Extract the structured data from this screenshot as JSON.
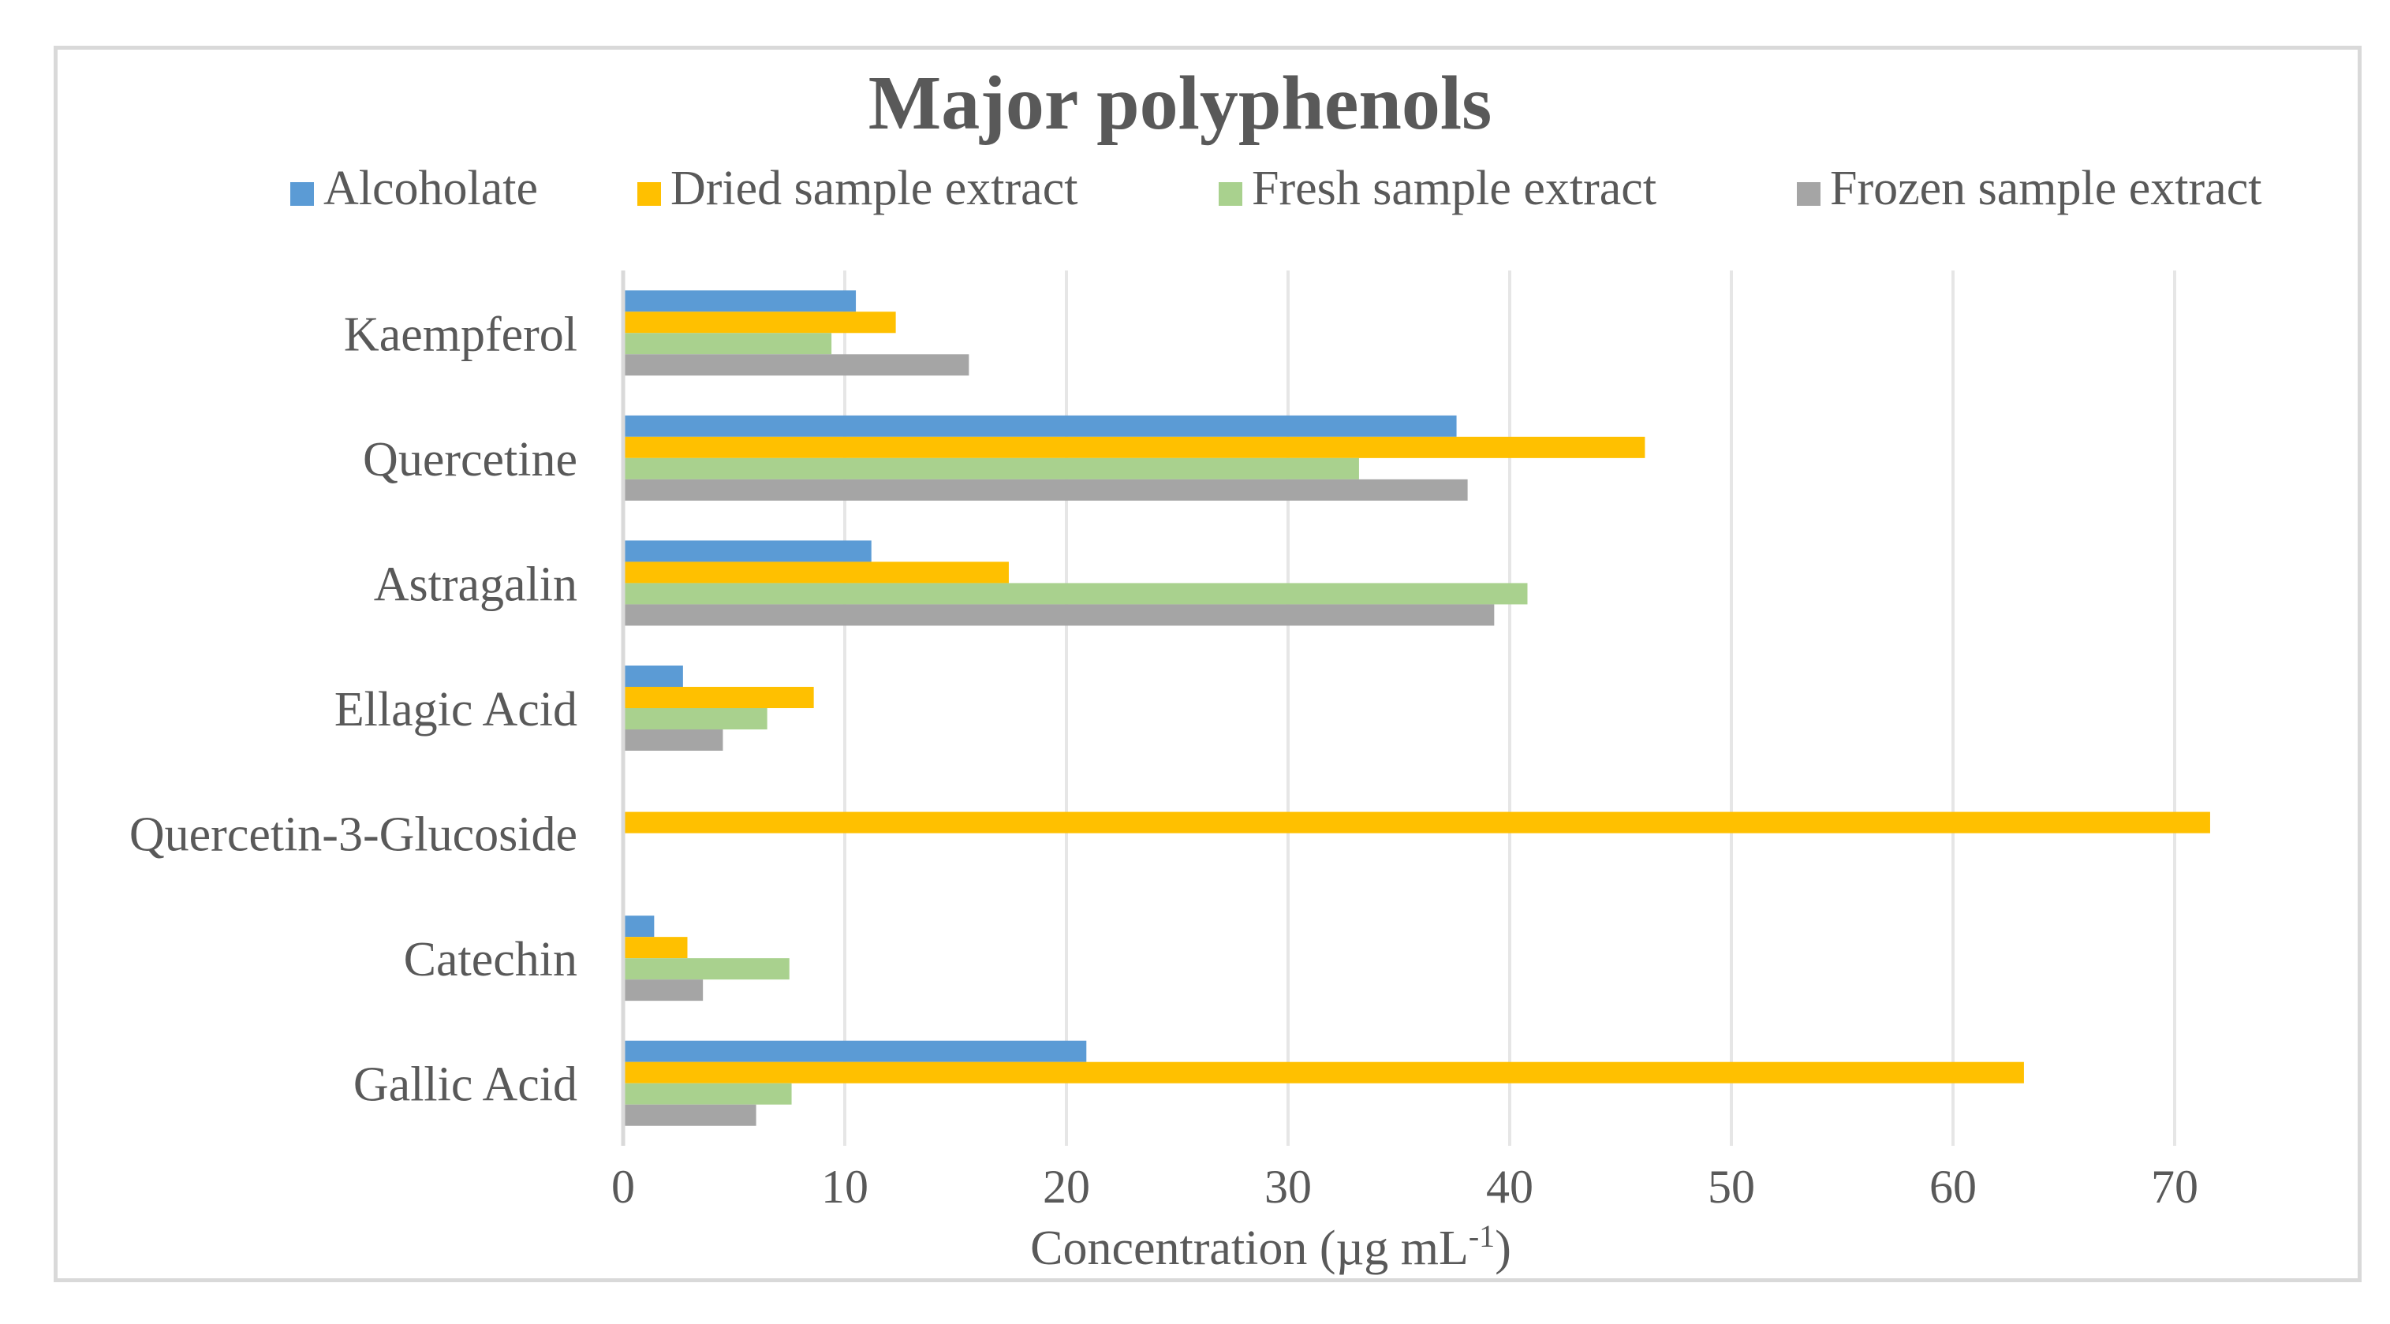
{
  "chart_data": {
    "type": "bar",
    "orientation": "horizontal",
    "title": "Major polyphenols",
    "xlabel": "Concentration (µg mL",
    "xlabel_superscript": "-1",
    "xlabel_suffix": ")",
    "ylabel": "",
    "xlim": [
      0,
      72
    ],
    "xticks": [
      0,
      10,
      20,
      30,
      40,
      50,
      60,
      70
    ],
    "grid": true,
    "legend_position": "top",
    "categories": [
      "Kaempferol",
      "Quercetine",
      "Astragalin",
      "Ellagic Acid",
      "Quercetin-3-Glucoside",
      "Catechin",
      "Gallic Acid"
    ],
    "series": [
      {
        "name": "Alcoholate",
        "color": "#5b9bd5",
        "values": [
          10.5,
          37.6,
          11.2,
          2.7,
          0,
          1.4,
          20.9
        ]
      },
      {
        "name": "Dried sample extract",
        "color": "#ffc000",
        "values": [
          12.3,
          46.1,
          17.4,
          8.6,
          71.6,
          2.9,
          63.2
        ]
      },
      {
        "name": "Fresh sample extract",
        "color": "#a9d18e",
        "values": [
          9.4,
          33.2,
          40.8,
          6.5,
          0,
          7.5,
          7.6
        ]
      },
      {
        "name": "Frozen sample extract",
        "color": "#a5a5a5",
        "values": [
          15.6,
          38.1,
          39.3,
          4.5,
          0,
          3.6,
          6.0
        ]
      }
    ]
  }
}
